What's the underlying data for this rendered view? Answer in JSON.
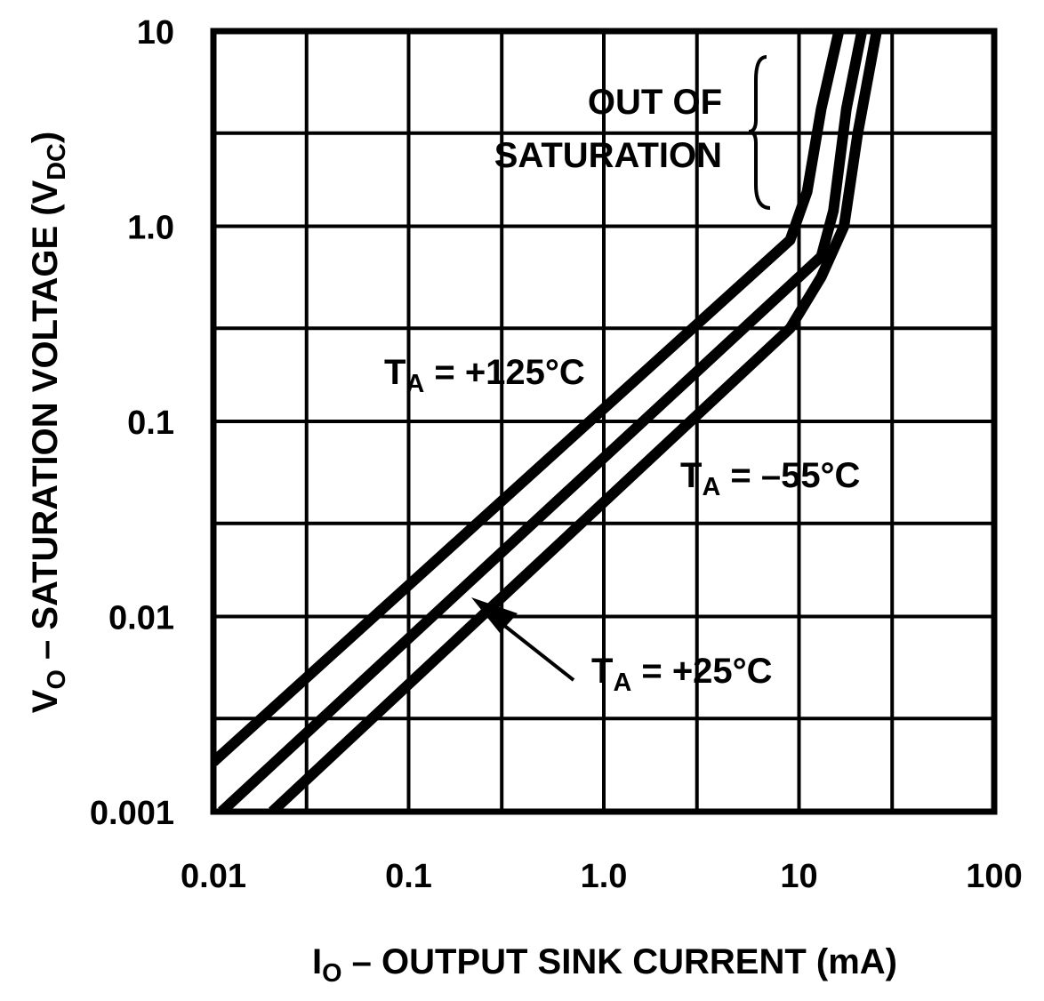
{
  "chart_data": {
    "type": "line",
    "log_x": true,
    "log_y": true,
    "grid": true,
    "color": "#000000",
    "xlim": [
      0.01,
      100
    ],
    "ylim": [
      0.001,
      10
    ],
    "xticks": [
      0.01,
      0.1,
      {
        "value": 1,
        "label": "1.0"
      },
      10,
      100
    ],
    "yticks": [
      0.001,
      0.01,
      0.1,
      {
        "value": 1,
        "label": "1.0"
      },
      10
    ],
    "xgrid": [
      0.03,
      0.3,
      3,
      30
    ],
    "ygrid": [
      0.003,
      0.03,
      0.3,
      3
    ],
    "xlabel": [
      {
        "text": "I"
      },
      {
        "text": "O",
        "sub": true
      },
      {
        "text": " – OUTPUT SINK CURRENT (mA)"
      }
    ],
    "ylabel": [
      {
        "text": "V"
      },
      {
        "text": "O",
        "sub": true
      },
      {
        "text": " – SATURATION VOLTAGE (V"
      },
      {
        "text": "DC",
        "sub": true
      },
      {
        "text": ")"
      }
    ],
    "annotation": [
      "OUT OF",
      "SATURATION"
    ],
    "series": [
      {
        "label": [
          {
            "text": "T"
          },
          {
            "text": "A",
            "sub": true
          },
          {
            "text": " = +125°C"
          }
        ],
        "x": [
          0.01,
          9,
          11,
          13,
          16
        ],
        "values": [
          0.0018,
          0.85,
          1.5,
          4,
          10
        ]
      },
      {
        "label": [
          {
            "text": "T"
          },
          {
            "text": "A",
            "sub": true
          },
          {
            "text": " = +25°C"
          }
        ],
        "x": [
          0.011,
          13,
          15,
          17.5,
          21
        ],
        "values": [
          0.001,
          0.7,
          1.2,
          4,
          10
        ]
      },
      {
        "label": [
          {
            "text": "T"
          },
          {
            "text": "A",
            "sub": true
          },
          {
            "text": " = –55°C"
          }
        ],
        "x": [
          0.02,
          9,
          13,
          17,
          20,
          25
        ],
        "values": [
          0.001,
          0.3,
          0.55,
          1,
          3,
          10
        ]
      }
    ]
  }
}
